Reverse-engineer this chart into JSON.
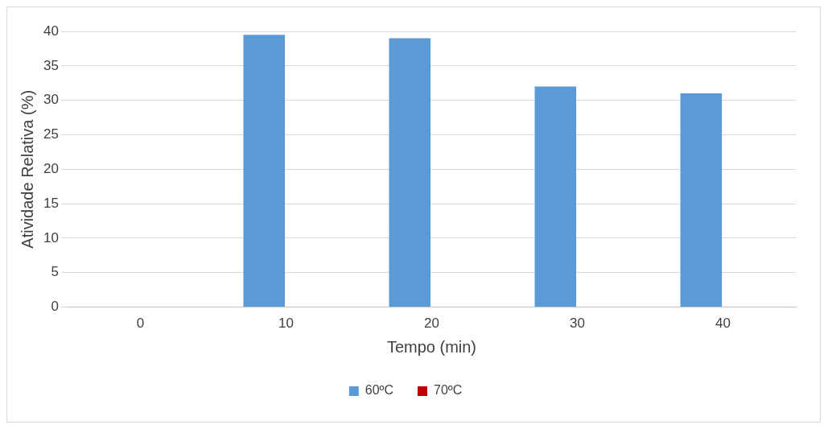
{
  "chart_data": {
    "type": "bar",
    "xlabel": "Tempo (min)",
    "ylabel": "Atividade Relativa (%)",
    "categories": [
      "0",
      "10",
      "20",
      "30",
      "40"
    ],
    "series": [
      {
        "name": "60ºC",
        "color": "#5b9bd5",
        "values": [
          null,
          39.5,
          39,
          32,
          31
        ]
      },
      {
        "name": "70ºC",
        "color": "#c00000",
        "values": [
          null,
          0,
          0,
          0,
          0
        ]
      }
    ],
    "ylim": [
      0,
      40
    ],
    "yticks": [
      0,
      5,
      10,
      15,
      20,
      25,
      30,
      35,
      40
    ],
    "grid": "y",
    "legend": "bottom"
  }
}
